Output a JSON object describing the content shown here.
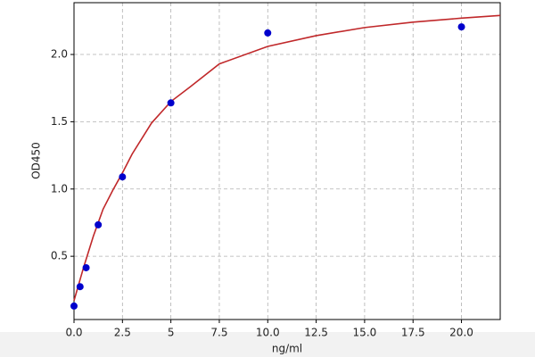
{
  "chart_data": {
    "type": "scatter",
    "xlabel": "ng/ml",
    "ylabel": "OD450",
    "xlim": [
      0,
      22
    ],
    "ylim": [
      0.03,
      2.385
    ],
    "xticks": [
      {
        "value": 0,
        "label": "0.0"
      },
      2.5,
      5,
      7.5,
      {
        "value": 10,
        "label": "10.0"
      },
      12.5,
      {
        "value": 15,
        "label": "15.0"
      },
      17.5,
      {
        "value": 20,
        "label": "20.0"
      }
    ],
    "yticks": [
      0.5,
      {
        "value": 1,
        "label": "1.0"
      },
      1.5,
      {
        "value": 2,
        "label": "2.0"
      }
    ],
    "grid": true,
    "series": [
      {
        "type": "line",
        "color": "#c0282a",
        "x": [
          0,
          0.5,
          1,
          1.5,
          2,
          2.5,
          3,
          4,
          5,
          6,
          7.5,
          10,
          12.5,
          15,
          17.5,
          20,
          22
        ],
        "values": [
          0.17,
          0.42,
          0.65,
          0.85,
          0.99,
          1.12,
          1.26,
          1.49,
          1.65,
          1.76,
          1.93,
          2.06,
          2.14,
          2.2,
          2.24,
          2.27,
          2.29
        ]
      },
      {
        "type": "scatter",
        "color": "#0000cc",
        "x": [
          0,
          0.3125,
          0.625,
          1.25,
          2.5,
          5,
          10,
          20
        ],
        "values": [
          0.13,
          0.274,
          0.415,
          0.734,
          1.09,
          1.64,
          2.16,
          2.205
        ]
      }
    ]
  }
}
